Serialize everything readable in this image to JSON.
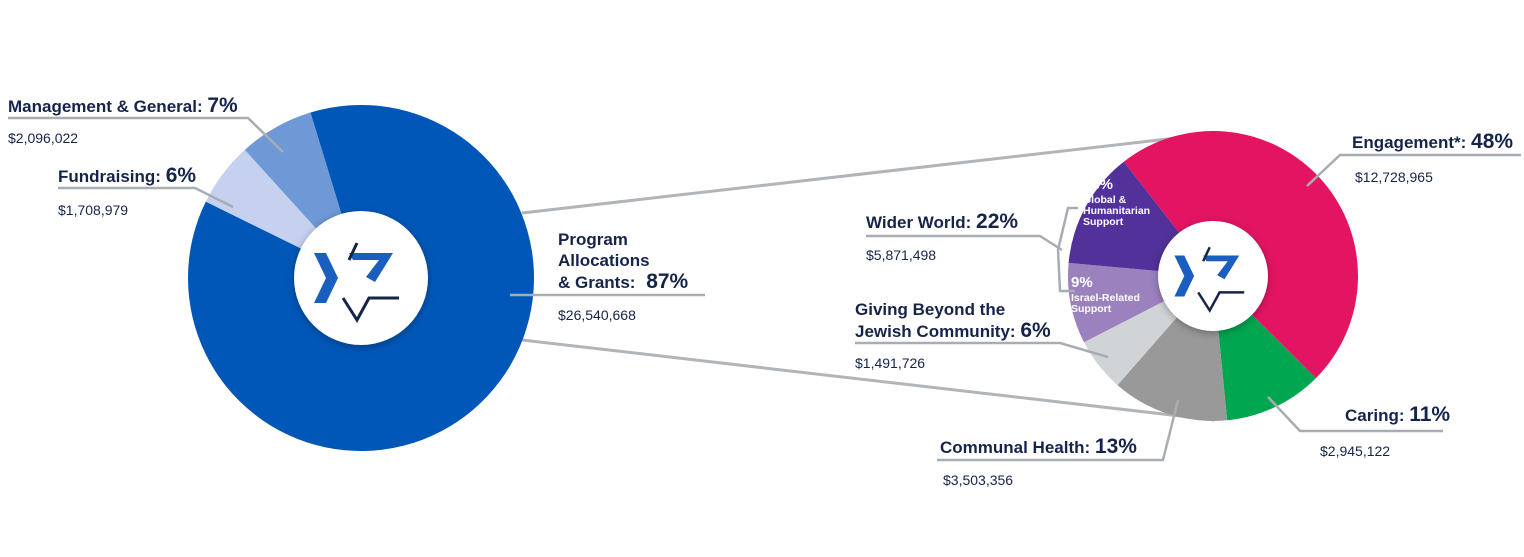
{
  "chart_data": [
    {
      "type": "pie",
      "title": "",
      "slices": [
        {
          "label": "Program Allocations & Grants",
          "percent": 87,
          "amount": "$26,540,668",
          "color": "#0057b8"
        },
        {
          "label": "Fundraising",
          "percent": 6,
          "amount": "$1,708,979",
          "color": "#c5d1ee"
        },
        {
          "label": "Management & General",
          "percent": 7,
          "amount": "$2,096,022",
          "color": "#6f98d6"
        }
      ],
      "text": {
        "mg_label": "Management & General:",
        "mg_pct": "7%",
        "mg_amt": "$2,096,022",
        "fr_label": "Fundraising:",
        "fr_pct": "6%",
        "fr_amt": "$1,708,979",
        "pa_line1": "Program",
        "pa_line2": "Allocations",
        "pa_line3": "& Grants:",
        "pa_pct": "87%",
        "pa_amt": "$26,540,668"
      }
    },
    {
      "type": "pie",
      "title": "",
      "slices": [
        {
          "label": "Engagement*",
          "percent": 48,
          "amount": "$12,728,965",
          "color": "#e31563"
        },
        {
          "label": "Caring",
          "percent": 11,
          "amount": "$2,945,122",
          "color": "#00a650"
        },
        {
          "label": "Communal Health",
          "percent": 13,
          "amount": "$3,503,356",
          "color": "#999999"
        },
        {
          "label": "Giving Beyond the Jewish Community",
          "percent": 6,
          "amount": "$1,491,726",
          "color": "#d1d4d7"
        },
        {
          "label": "Israel-Related Support",
          "percent": 9,
          "amount": "",
          "color": "#9b82bf"
        },
        {
          "label": "Global & Humanitarian Support",
          "percent": 13,
          "amount": "",
          "color": "#52329a"
        }
      ],
      "groups": [
        {
          "label": "Wider World",
          "percent": 22,
          "amount": "$5,871,498"
        }
      ],
      "text": {
        "en_label": "Engagement*:",
        "en_pct": "48%",
        "en_amt": "$12,728,965",
        "ww_label": "Wider World:",
        "ww_pct": "22%",
        "ww_amt": "$5,871,498",
        "gb_line1": "Giving Beyond the",
        "gb_line2": "Jewish Community:",
        "gb_pct": "6%",
        "gb_amt": "$1,491,726",
        "ch_label": "Communal Health:",
        "ch_pct": "13%",
        "ch_amt": "$3,503,356",
        "ca_label": "Caring:",
        "ca_pct": "11%",
        "ca_amt": "$2,945,122",
        "gh_pct": "13%",
        "gh_line1": "Global &",
        "gh_line2": "Humanitarian",
        "gh_line3": "Support",
        "ir_pct": "9%",
        "ir_line1": "Israel-Related",
        "ir_line2": "Support"
      }
    }
  ]
}
